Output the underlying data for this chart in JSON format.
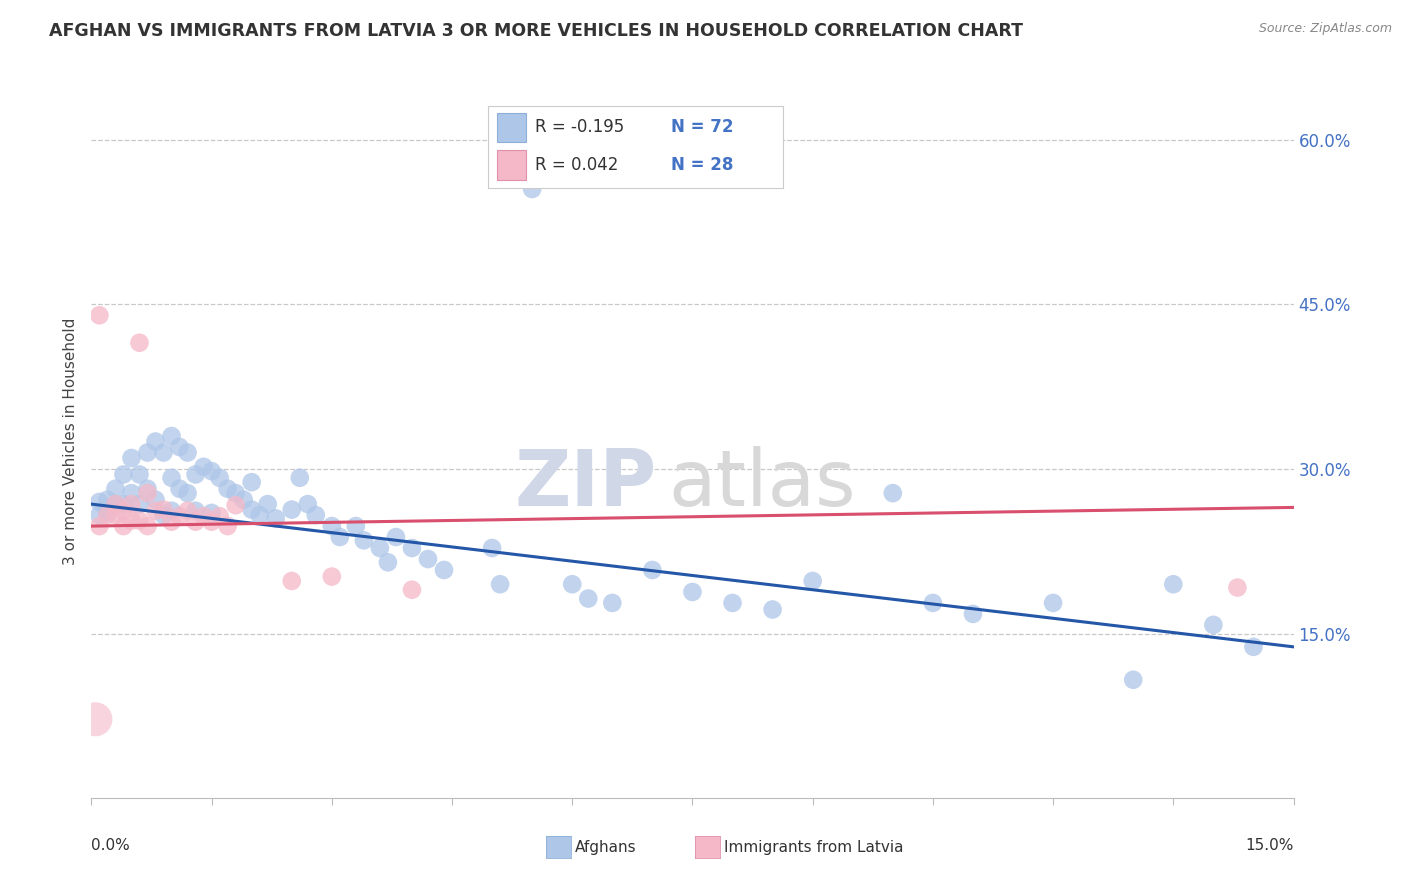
{
  "title": "AFGHAN VS IMMIGRANTS FROM LATVIA 3 OR MORE VEHICLES IN HOUSEHOLD CORRELATION CHART",
  "source": "Source: ZipAtlas.com",
  "ylabel": "3 or more Vehicles in Household",
  "afghan_color": "#aec6e8",
  "latvia_color": "#f4b8c8",
  "afghan_line_color": "#2457a8",
  "latvia_line_color": "#d94f6e",
  "watermark_zip": "ZIP",
  "watermark_atlas": "atlas",
  "xmin": 0.0,
  "xmax": 0.15,
  "ymin": 0.0,
  "ymax": 0.65,
  "yticks": [
    0.15,
    0.3,
    0.45,
    0.6
  ],
  "ytick_labels": [
    "15.0%",
    "30.0%",
    "45.0%",
    "60.0%"
  ],
  "legend_r1": "R = -0.195",
  "legend_n1": "N = 72",
  "legend_r2": "R = 0.042",
  "legend_n2": "N = 28",
  "afghan_line_x0": 0.0,
  "afghan_line_y0": 0.268,
  "afghan_line_x1": 0.15,
  "afghan_line_y1": 0.138,
  "latvia_line_x0": 0.0,
  "latvia_line_y0": 0.248,
  "latvia_line_x1": 0.15,
  "latvia_line_y1": 0.265,
  "afghan_points": [
    [
      0.001,
      0.27
    ],
    [
      0.001,
      0.258
    ],
    [
      0.002,
      0.272
    ],
    [
      0.002,
      0.26
    ],
    [
      0.003,
      0.282
    ],
    [
      0.003,
      0.268
    ],
    [
      0.004,
      0.295
    ],
    [
      0.004,
      0.268
    ],
    [
      0.005,
      0.31
    ],
    [
      0.005,
      0.278
    ],
    [
      0.006,
      0.295
    ],
    [
      0.006,
      0.268
    ],
    [
      0.007,
      0.315
    ],
    [
      0.007,
      0.282
    ],
    [
      0.008,
      0.325
    ],
    [
      0.008,
      0.272
    ],
    [
      0.009,
      0.315
    ],
    [
      0.009,
      0.258
    ],
    [
      0.01,
      0.33
    ],
    [
      0.01,
      0.292
    ],
    [
      0.01,
      0.262
    ],
    [
      0.011,
      0.32
    ],
    [
      0.011,
      0.282
    ],
    [
      0.012,
      0.315
    ],
    [
      0.012,
      0.278
    ],
    [
      0.013,
      0.295
    ],
    [
      0.013,
      0.262
    ],
    [
      0.014,
      0.302
    ],
    [
      0.015,
      0.298
    ],
    [
      0.015,
      0.26
    ],
    [
      0.016,
      0.292
    ],
    [
      0.017,
      0.282
    ],
    [
      0.018,
      0.278
    ],
    [
      0.019,
      0.272
    ],
    [
      0.02,
      0.288
    ],
    [
      0.02,
      0.263
    ],
    [
      0.021,
      0.258
    ],
    [
      0.022,
      0.268
    ],
    [
      0.023,
      0.255
    ],
    [
      0.025,
      0.263
    ],
    [
      0.026,
      0.292
    ],
    [
      0.027,
      0.268
    ],
    [
      0.028,
      0.258
    ],
    [
      0.03,
      0.248
    ],
    [
      0.031,
      0.238
    ],
    [
      0.033,
      0.248
    ],
    [
      0.034,
      0.235
    ],
    [
      0.036,
      0.228
    ],
    [
      0.037,
      0.215
    ],
    [
      0.038,
      0.238
    ],
    [
      0.04,
      0.228
    ],
    [
      0.042,
      0.218
    ],
    [
      0.044,
      0.208
    ],
    [
      0.05,
      0.228
    ],
    [
      0.051,
      0.195
    ],
    [
      0.055,
      0.555
    ],
    [
      0.06,
      0.195
    ],
    [
      0.062,
      0.182
    ],
    [
      0.065,
      0.178
    ],
    [
      0.07,
      0.208
    ],
    [
      0.075,
      0.188
    ],
    [
      0.08,
      0.178
    ],
    [
      0.085,
      0.172
    ],
    [
      0.09,
      0.198
    ],
    [
      0.1,
      0.278
    ],
    [
      0.105,
      0.178
    ],
    [
      0.11,
      0.168
    ],
    [
      0.12,
      0.178
    ],
    [
      0.13,
      0.108
    ],
    [
      0.135,
      0.195
    ],
    [
      0.14,
      0.158
    ],
    [
      0.145,
      0.138
    ]
  ],
  "latvia_points": [
    [
      0.001,
      0.44
    ],
    [
      0.001,
      0.248
    ],
    [
      0.002,
      0.258
    ],
    [
      0.003,
      0.268
    ],
    [
      0.003,
      0.258
    ],
    [
      0.004,
      0.262
    ],
    [
      0.004,
      0.248
    ],
    [
      0.005,
      0.268
    ],
    [
      0.005,
      0.253
    ],
    [
      0.006,
      0.253
    ],
    [
      0.006,
      0.415
    ],
    [
      0.007,
      0.278
    ],
    [
      0.007,
      0.248
    ],
    [
      0.008,
      0.262
    ],
    [
      0.009,
      0.263
    ],
    [
      0.01,
      0.252
    ],
    [
      0.011,
      0.257
    ],
    [
      0.012,
      0.262
    ],
    [
      0.013,
      0.252
    ],
    [
      0.014,
      0.257
    ],
    [
      0.015,
      0.252
    ],
    [
      0.016,
      0.257
    ],
    [
      0.017,
      0.248
    ],
    [
      0.018,
      0.267
    ],
    [
      0.025,
      0.198
    ],
    [
      0.03,
      0.202
    ],
    [
      0.04,
      0.19
    ],
    [
      0.143,
      0.192
    ]
  ],
  "bottom_legend_labels": [
    "Afghans",
    "Immigrants from Latvia"
  ]
}
